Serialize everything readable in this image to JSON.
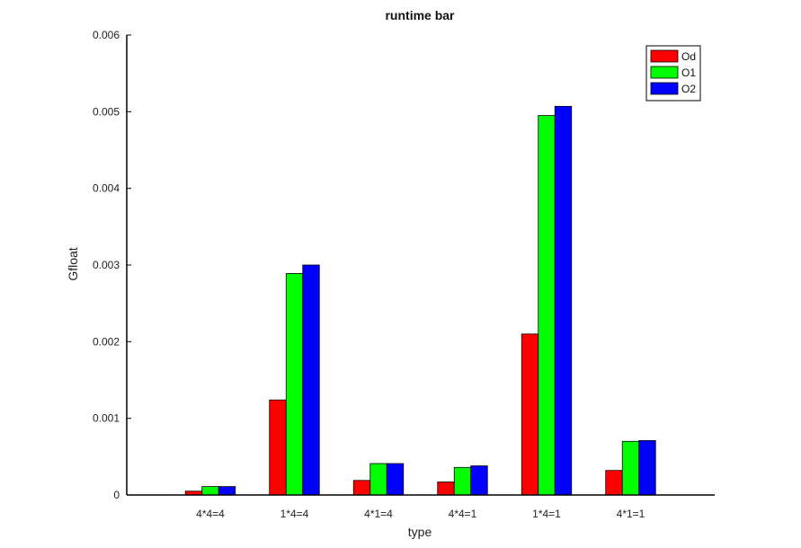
{
  "chart_data": {
    "type": "bar",
    "title": "runtime bar",
    "xlabel": "type",
    "ylabel": "Gfloat",
    "categories": [
      "4*4=4",
      "1*4=4",
      "4*1=4",
      "4*4=1",
      "1*4=1",
      "4*1=1"
    ],
    "series": [
      {
        "name": "Od",
        "color": "#ff0000",
        "values": [
          5e-05,
          0.00124,
          0.00019,
          0.00017,
          0.0021,
          0.00032
        ]
      },
      {
        "name": "O1",
        "color": "#00ff00",
        "values": [
          0.00011,
          0.00289,
          0.00041,
          0.00036,
          0.00495,
          0.0007
        ]
      },
      {
        "name": "O2",
        "color": "#0000ff",
        "values": [
          0.00011,
          0.003,
          0.00041,
          0.00038,
          0.00507,
          0.00071
        ]
      }
    ],
    "ylim": [
      0,
      0.006
    ],
    "yticks": [
      0,
      0.001,
      0.002,
      0.003,
      0.004,
      0.005,
      0.006
    ],
    "ytick_labels": [
      "0",
      "0.001",
      "0.002",
      "0.003",
      "0.004",
      "0.005",
      "0.006"
    ],
    "grid": false,
    "legend_position": "top-right"
  }
}
